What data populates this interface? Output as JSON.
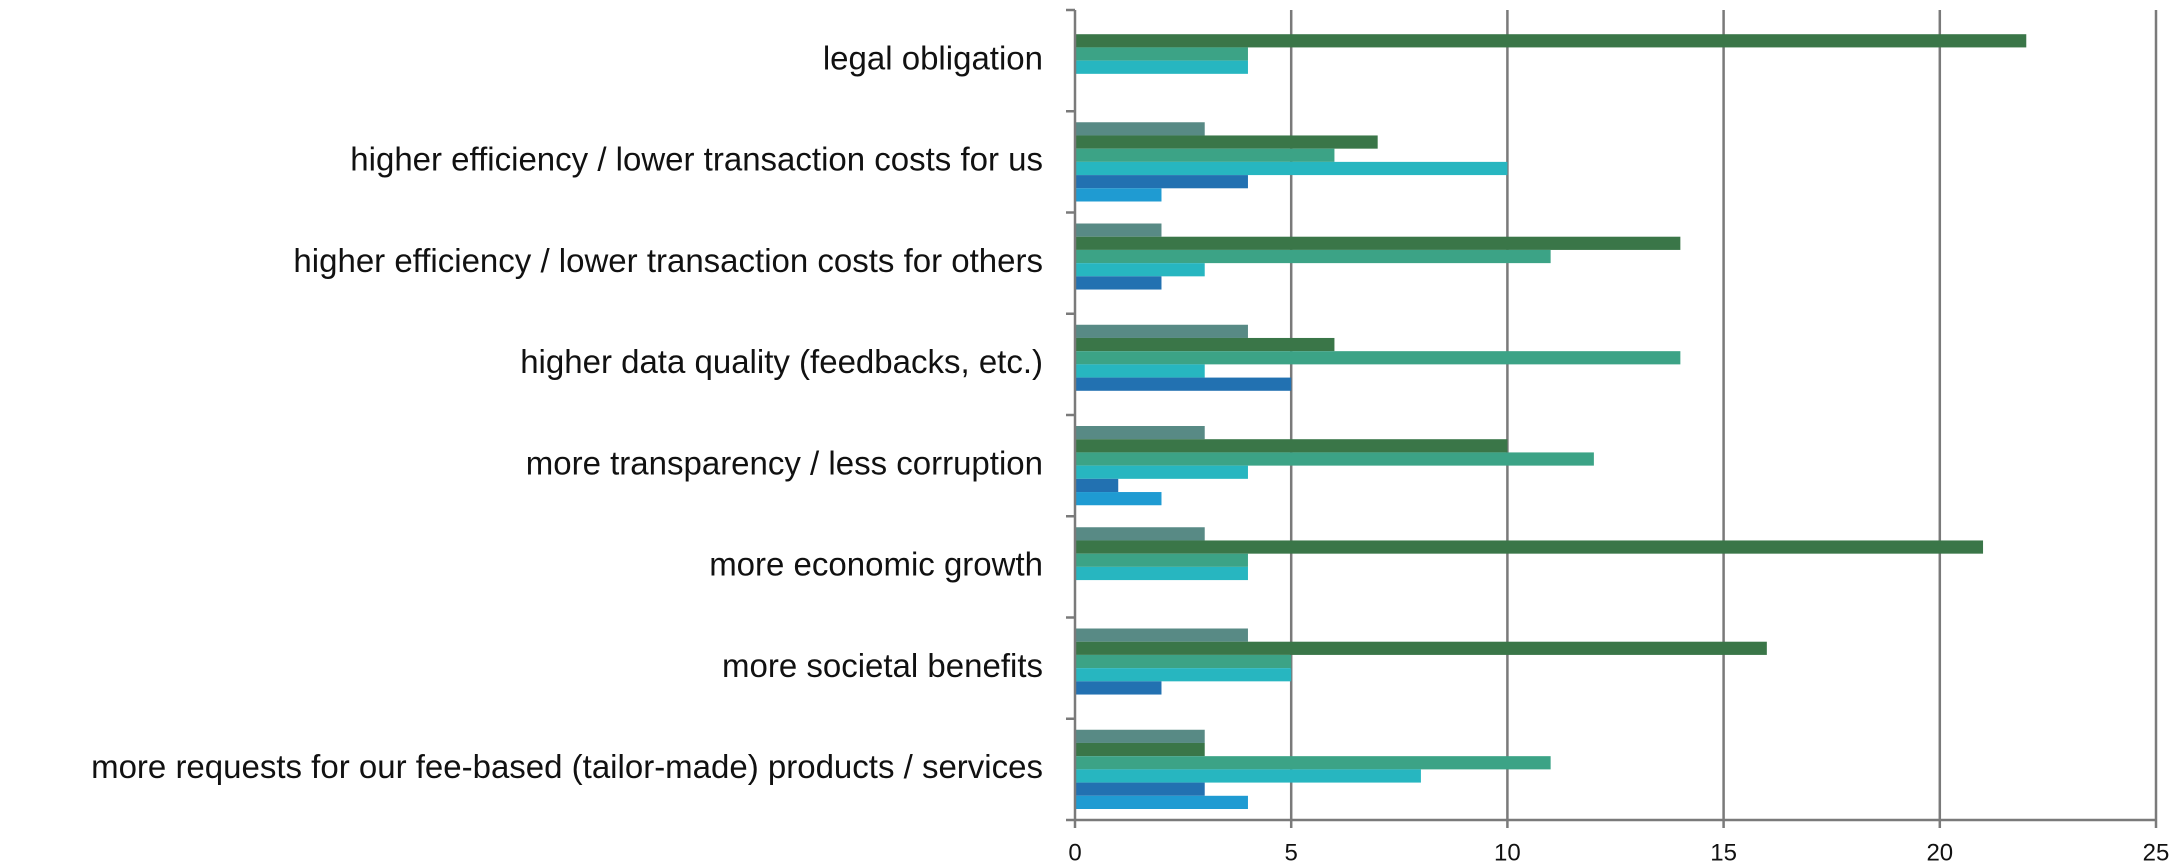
{
  "chart_data": {
    "type": "hbar",
    "categories": [
      "legal obligation",
      "higher efficiency / lower transaction costs for us",
      "higher efficiency / lower transaction costs for others",
      "higher data quality (feedbacks, etc.)",
      "more transparency / less corruption",
      "more economic growth",
      "more societal benefits",
      "more requests for our fee-based (tailor-made) products / services"
    ],
    "series": [
      {
        "color": "#588a85",
        "values": [
          0,
          3,
          2,
          4,
          3,
          3,
          4,
          3
        ]
      },
      {
        "color": "#3a7648",
        "values": [
          22,
          7,
          14,
          6,
          10,
          21,
          16,
          3
        ]
      },
      {
        "color": "#3ca386",
        "values": [
          4,
          6,
          11,
          14,
          12,
          4,
          5,
          11
        ]
      },
      {
        "color": "#27b6c0",
        "values": [
          4,
          10,
          3,
          3,
          4,
          4,
          5,
          8
        ]
      },
      {
        "color": "#2271b1",
        "values": [
          0,
          4,
          2,
          5,
          1,
          0,
          2,
          3
        ]
      },
      {
        "color": "#1f9bd2",
        "values": [
          0,
          2,
          0,
          0,
          2,
          0,
          0,
          4
        ]
      }
    ],
    "xlim": [
      0,
      25
    ],
    "xticks": [
      0,
      5,
      10,
      15,
      20,
      25
    ],
    "grid": true
  }
}
